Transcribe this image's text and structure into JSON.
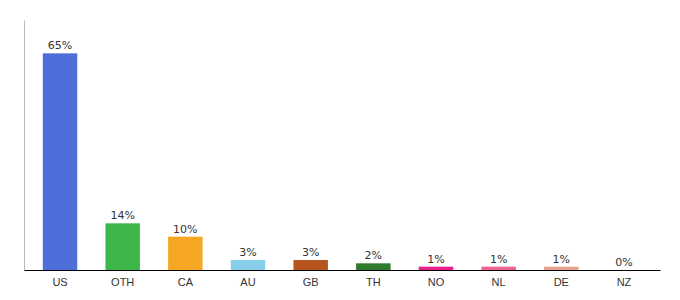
{
  "chart_data": {
    "type": "bar",
    "categories": [
      "US",
      "OTH",
      "CA",
      "AU",
      "GB",
      "TH",
      "NO",
      "NL",
      "DE",
      "NZ"
    ],
    "values": [
      65,
      14,
      10,
      3,
      3,
      2,
      1,
      1,
      1,
      0
    ],
    "value_labels": [
      "65%",
      "14%",
      "10%",
      "3%",
      "3%",
      "2%",
      "1%",
      "1%",
      "1%",
      "0%"
    ],
    "colors": [
      "#4e6fd9",
      "#3cb54a",
      "#f5a623",
      "#87ceeb",
      "#b5541c",
      "#2d7a2d",
      "#e91e8c",
      "#f06090",
      "#e8a090",
      "#cccccc"
    ],
    "ylim": [
      0,
      75
    ],
    "data_labels": true,
    "tick_labels": "x"
  }
}
